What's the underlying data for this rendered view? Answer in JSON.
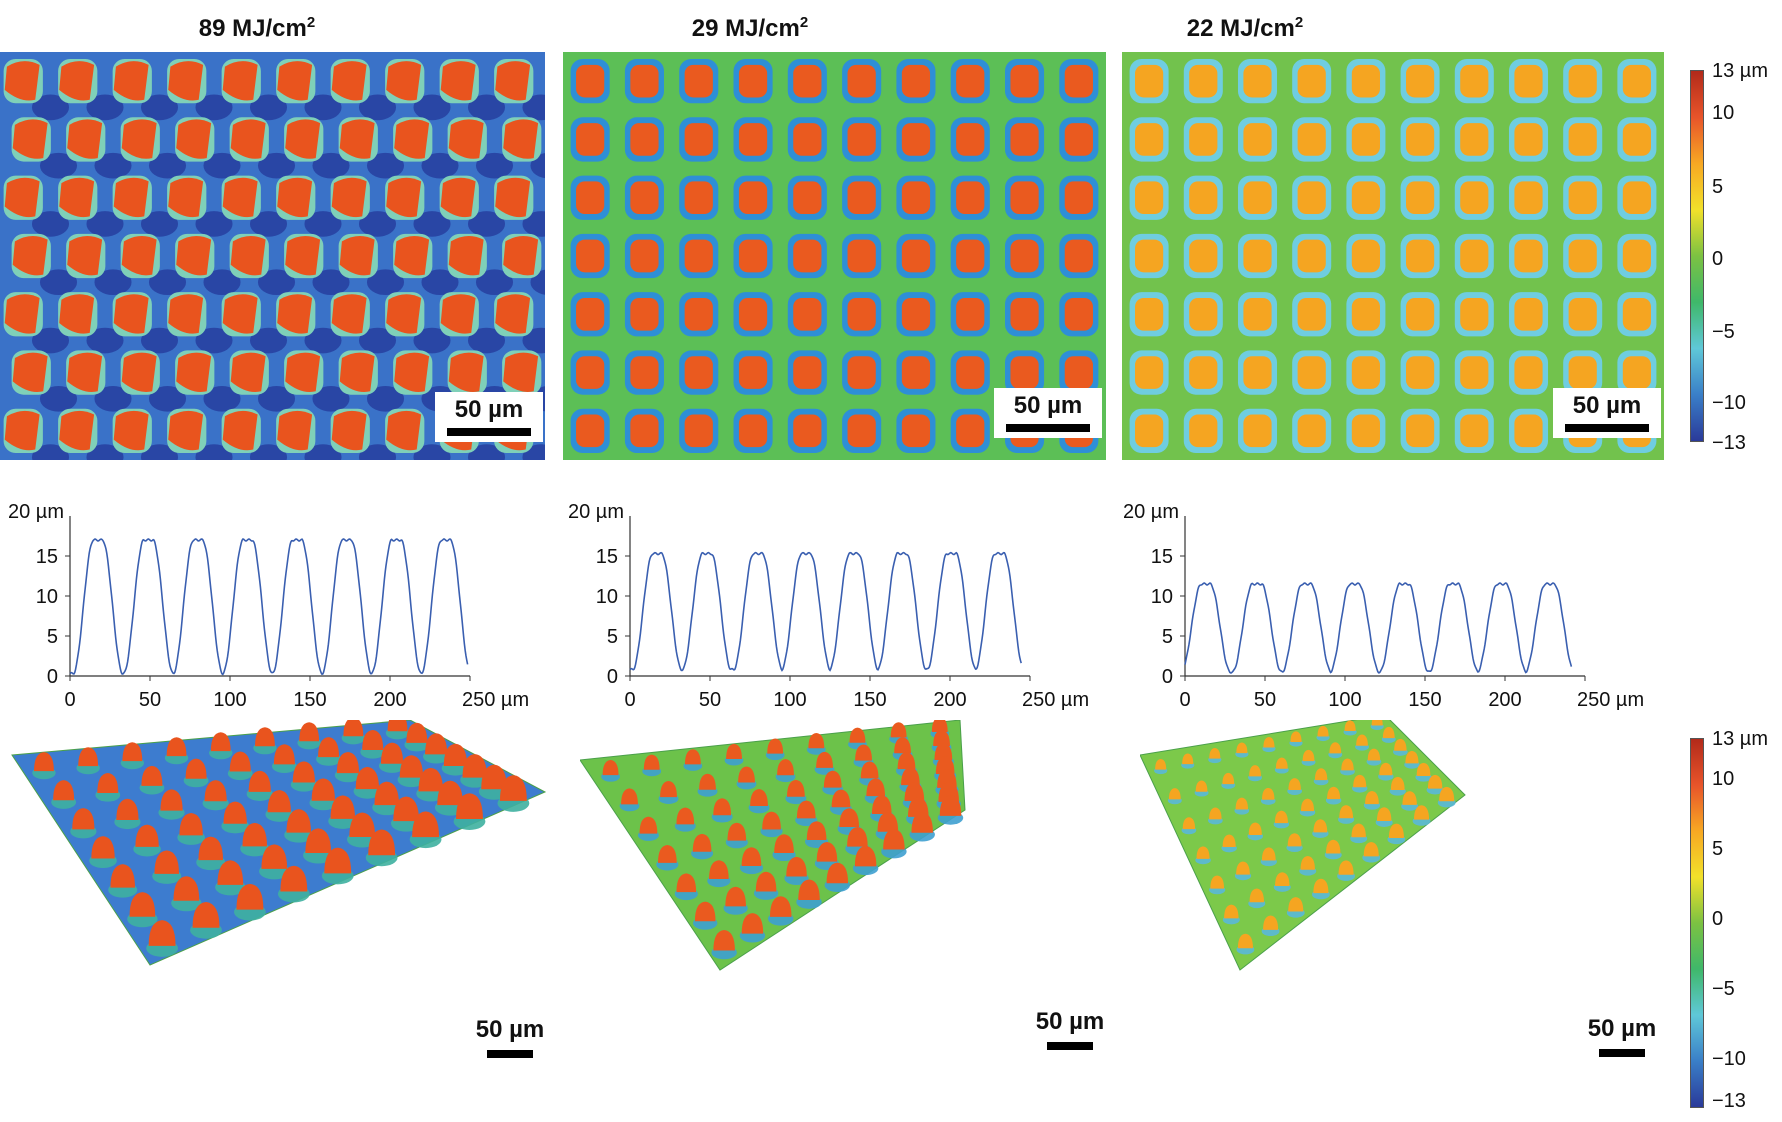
{
  "panels": [
    {
      "title_main": "89 MJ/cm",
      "title_sup": "2",
      "scale_label": "50 µm",
      "profile": {
        "ylabel": "20 µm",
        "xunit": "250 µm",
        "peak": 17,
        "min": 0.3,
        "x_peaks": [
          17.5,
          49,
          80,
          111,
          142,
          173,
          204,
          235
        ]
      }
    },
    {
      "title_main": "29 MJ/cm",
      "title_sup": "2",
      "scale_label": "50 µm",
      "profile": {
        "ylabel": "20 µm",
        "xunit": "250 µm",
        "peak": 15.3,
        "min": 0.8,
        "x_peaks": [
          17,
          48,
          80,
          110,
          140,
          170,
          201,
          231
        ]
      }
    },
    {
      "title_main": "22 MJ/cm",
      "title_sup": "2",
      "scale_label": "50 µm",
      "profile": {
        "ylabel": "20 µm",
        "xunit": "250 µm",
        "peak": 11.5,
        "min": 0.5,
        "x_peaks": [
          13,
          45,
          76,
          106,
          137,
          168,
          198,
          228
        ]
      }
    }
  ],
  "profile_axes": {
    "yticks": [
      "0",
      "5",
      "10",
      "15"
    ],
    "xticks": [
      "0",
      "50",
      "100",
      "150",
      "200"
    ],
    "ylim": [
      0,
      20
    ],
    "xlim": [
      0,
      250
    ]
  },
  "colorbar": {
    "top_label": "13 µm",
    "labels": [
      "10",
      "5",
      "0",
      "−5",
      "−10",
      "−13"
    ],
    "colors": [
      "#b22a1a",
      "#e8542a",
      "#f7a823",
      "#f2e12a",
      "#7cc242",
      "#3fb86a",
      "#5fc8d8",
      "#3a7fc8",
      "#2a3a9a"
    ]
  },
  "colors": {
    "profile_line": "#3a5fb0",
    "peak_89": "#e9541e",
    "valley_89": "#263b9c",
    "field_89": "#3a72c8",
    "peak_29": "#ea5a1f",
    "field_29": "#5cbf56",
    "peak_22": "#f5a521",
    "field_22": "#72c24d"
  },
  "chart_data": [
    {
      "type": "line",
      "title": "",
      "xlabel": "µm",
      "ylabel": "µm",
      "xlim": [
        0,
        250
      ],
      "ylim": [
        0,
        20
      ],
      "series": [
        {
          "peaks_x": [
            17.5,
            49,
            80,
            111,
            142,
            173,
            204,
            235
          ],
          "peak_height": 17,
          "valley_height": 0.3
        }
      ]
    },
    {
      "type": "line",
      "title": "",
      "xlabel": "µm",
      "ylabel": "µm",
      "xlim": [
        0,
        250
      ],
      "ylim": [
        0,
        20
      ],
      "series": [
        {
          "peaks_x": [
            17,
            48,
            80,
            110,
            140,
            170,
            201,
            231
          ],
          "peak_height": 15.3,
          "valley_height": 0.8
        }
      ]
    },
    {
      "type": "line",
      "title": "",
      "xlabel": "µm",
      "ylabel": "µm",
      "xlim": [
        0,
        250
      ],
      "ylim": [
        0,
        20
      ],
      "series": [
        {
          "peaks_x": [
            13,
            45,
            76,
            106,
            137,
            168,
            198,
            228
          ],
          "peak_height": 11.5,
          "valley_height": 0.5
        }
      ]
    }
  ]
}
